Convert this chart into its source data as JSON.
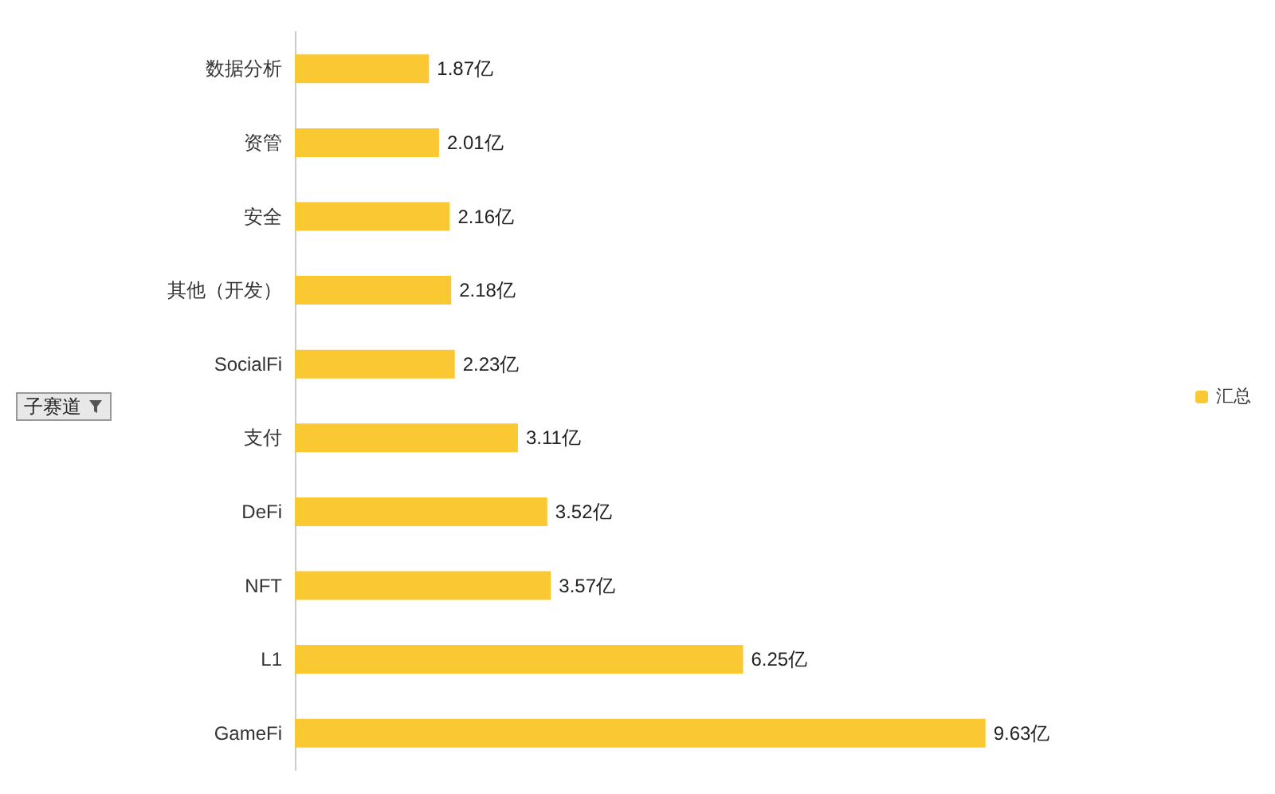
{
  "chart_data": {
    "type": "bar",
    "orientation": "horizontal",
    "categories": [
      "数据分析",
      "资管",
      "安全",
      "其他（开发）",
      "SocialFi",
      "支付",
      "DeFi",
      "NFT",
      "L1",
      "GameFi"
    ],
    "series": [
      {
        "name": "汇总",
        "color": "#f9c833",
        "values": [
          1.87,
          2.01,
          2.16,
          2.18,
          2.23,
          3.11,
          3.52,
          3.57,
          6.25,
          9.63
        ],
        "value_labels": [
          "1.87亿",
          "2.01亿",
          "2.16亿",
          "2.18亿",
          "2.23亿",
          "3.11亿",
          "3.52亿",
          "3.57亿",
          "6.25亿",
          "9.63亿"
        ]
      }
    ],
    "legend": "right",
    "grid": false,
    "annotations": [
      "子赛道"
    ]
  }
}
